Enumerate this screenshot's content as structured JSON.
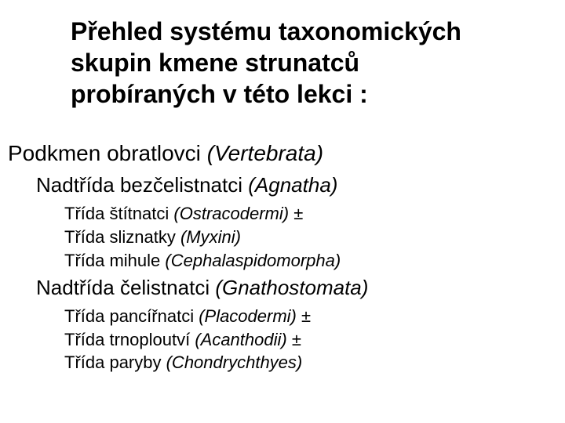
{
  "title": {
    "line1": "Přehled systému taxonomických",
    "line2": "skupin kmene strunatců",
    "line3": "probíraných v této lekci :"
  },
  "subphylum": {
    "prefix": "Podkmen obratlovci ",
    "latin": "(Vertebrata)"
  },
  "superclass1": {
    "prefix": "Nadtřída bezčelistnatci ",
    "latin": "(Agnatha)"
  },
  "class1": {
    "prefix": "Třída štítnatci ",
    "latin": "(Ostracodermi)",
    "suffix": " ±"
  },
  "class2": {
    "prefix": "Třída sliznatky ",
    "latin": "(Myxini)",
    "suffix": ""
  },
  "class3": {
    "prefix": "Třída mihule ",
    "latin": "(Cephalaspidomorpha)",
    "suffix": ""
  },
  "superclass2": {
    "prefix": "Nadtřída čelistnatci ",
    "latin": "(Gnathostomata)"
  },
  "class4": {
    "prefix": "Třída pancířnatci ",
    "latin": "(Placodermi)",
    "suffix": " ±"
  },
  "class5": {
    "prefix": "Třída trnoploutví ",
    "latin": "(Acanthodii)",
    "suffix": " ±"
  },
  "class6": {
    "prefix": "Třída paryby ",
    "latin": "(Chondrychthyes)",
    "suffix": ""
  },
  "colors": {
    "background": "#ffffff",
    "text": "#000000"
  },
  "fonts": {
    "title_size": 32,
    "subphylum_size": 28,
    "superclass_size": 26,
    "class_size": 22
  }
}
